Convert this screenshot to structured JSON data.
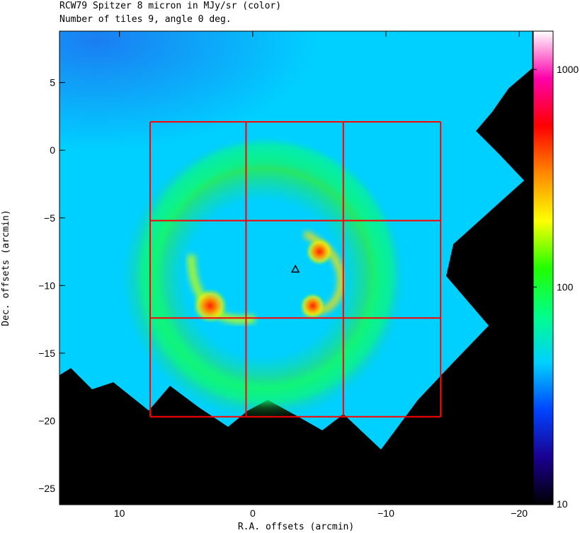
{
  "chart_data": {
    "type": "heatmap",
    "title": "RCW79 Spitzer 8 micron in MJy/sr (color)",
    "subtitle": "Number of tiles 9, angle 0 deg.",
    "xlabel": "R.A. offsets (arcmin)",
    "ylabel": "Dec. offsets (arcmin)",
    "xlim": [
      14.5,
      -21.0
    ],
    "ylim": [
      -26.2,
      8.8
    ],
    "x_ticks": [
      10,
      0,
      -10,
      -20
    ],
    "x_tick_labels": [
      "10",
      "0",
      "−10",
      "−20"
    ],
    "y_ticks": [
      5,
      0,
      -5,
      -10,
      -15,
      -20,
      -25
    ],
    "y_tick_labels": [
      "5",
      "0",
      "−5",
      "−10",
      "−15",
      "−20",
      "−25"
    ],
    "colorbar": {
      "scale": "log",
      "range": [
        10,
        1500
      ],
      "ticks": [
        10,
        100,
        1000
      ],
      "tick_labels": [
        "10",
        "100",
        "1000"
      ],
      "colors": [
        "#000000",
        "#1a0090",
        "#0044ff",
        "#00d0ff",
        "#00ff88",
        "#22ff00",
        "#ffff00",
        "#ff8800",
        "#ff0000",
        "#ff00aa",
        "#ffffff"
      ]
    },
    "tile_grid": {
      "x_edges": [
        7.7,
        0.5,
        -6.8,
        -14.1
      ],
      "y_edges": [
        2.1,
        -5.2,
        -12.4,
        -19.7
      ],
      "color": "#ff0000"
    },
    "marker": {
      "type": "triangle",
      "x": -3.2,
      "y": -8.8
    },
    "features": {
      "background_level": 38,
      "ring_level": 90,
      "hot_spots": [
        {
          "x": 3.2,
          "y": -11.5,
          "level": 450
        },
        {
          "x": -5.0,
          "y": -7.5,
          "level": 220
        },
        {
          "x": -4.5,
          "y": -11.5,
          "level": 180
        }
      ]
    }
  }
}
